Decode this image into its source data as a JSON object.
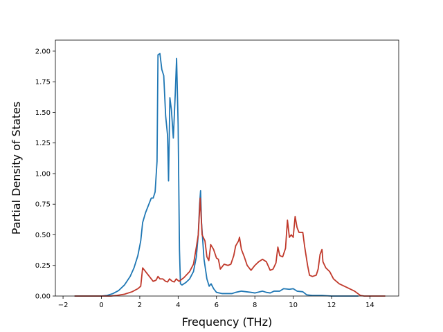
{
  "chart_data": {
    "type": "line",
    "title": "",
    "xlabel": "Frequency (THz)",
    "ylabel": "Partial Density of States",
    "xlim": [
      -2.4,
      15.5
    ],
    "ylim": [
      0.0,
      2.09
    ],
    "xticks": [
      -2,
      0,
      2,
      4,
      6,
      8,
      10,
      12,
      14
    ],
    "xtick_labels": [
      "−2",
      "0",
      "2",
      "4",
      "6",
      "8",
      "10",
      "12",
      "14"
    ],
    "yticks": [
      0.0,
      0.25,
      0.5,
      0.75,
      1.0,
      1.25,
      1.5,
      1.75,
      2.0
    ],
    "ytick_labels": [
      "0.00",
      "0.25",
      "0.50",
      "0.75",
      "1.00",
      "1.25",
      "1.50",
      "1.75",
      "2.00"
    ],
    "grid": false,
    "legend": "none",
    "series": [
      {
        "color": "#1f77b4",
        "points": [
          [
            -1.4,
            0.0
          ],
          [
            0.0,
            0.0
          ],
          [
            0.3,
            0.005
          ],
          [
            0.6,
            0.02
          ],
          [
            0.9,
            0.045
          ],
          [
            1.2,
            0.09
          ],
          [
            1.5,
            0.16
          ],
          [
            1.7,
            0.23
          ],
          [
            1.9,
            0.33
          ],
          [
            2.05,
            0.45
          ],
          [
            2.15,
            0.6
          ],
          [
            2.3,
            0.68
          ],
          [
            2.5,
            0.76
          ],
          [
            2.6,
            0.8
          ],
          [
            2.7,
            0.8
          ],
          [
            2.8,
            0.85
          ],
          [
            2.9,
            1.1
          ],
          [
            2.95,
            1.97
          ],
          [
            3.05,
            1.98
          ],
          [
            3.15,
            1.85
          ],
          [
            3.25,
            1.8
          ],
          [
            3.35,
            1.47
          ],
          [
            3.45,
            1.31
          ],
          [
            3.5,
            0.94
          ],
          [
            3.57,
            1.62
          ],
          [
            3.65,
            1.52
          ],
          [
            3.75,
            1.29
          ],
          [
            3.85,
            1.65
          ],
          [
            3.92,
            1.94
          ],
          [
            4.0,
            1.4
          ],
          [
            4.07,
            0.38
          ],
          [
            4.12,
            0.1
          ],
          [
            4.2,
            0.09
          ],
          [
            4.4,
            0.11
          ],
          [
            4.6,
            0.14
          ],
          [
            4.8,
            0.2
          ],
          [
            4.95,
            0.32
          ],
          [
            5.05,
            0.5
          ],
          [
            5.12,
            0.75
          ],
          [
            5.17,
            0.86
          ],
          [
            5.22,
            0.6
          ],
          [
            5.35,
            0.3
          ],
          [
            5.5,
            0.14
          ],
          [
            5.62,
            0.08
          ],
          [
            5.72,
            0.1
          ],
          [
            5.85,
            0.06
          ],
          [
            6.0,
            0.03
          ],
          [
            6.3,
            0.02
          ],
          [
            6.8,
            0.02
          ],
          [
            7.0,
            0.03
          ],
          [
            7.3,
            0.04
          ],
          [
            7.8,
            0.03
          ],
          [
            8.0,
            0.025
          ],
          [
            8.4,
            0.04
          ],
          [
            8.6,
            0.03
          ],
          [
            8.8,
            0.025
          ],
          [
            9.0,
            0.04
          ],
          [
            9.3,
            0.04
          ],
          [
            9.5,
            0.06
          ],
          [
            9.8,
            0.055
          ],
          [
            10.0,
            0.06
          ],
          [
            10.2,
            0.04
          ],
          [
            10.5,
            0.035
          ],
          [
            10.7,
            0.01
          ],
          [
            11.0,
            0.005
          ],
          [
            11.5,
            0.005
          ],
          [
            12.0,
            0.0
          ],
          [
            13.4,
            0.0
          ]
        ]
      },
      {
        "color": "#c0392b",
        "points": [
          [
            -1.4,
            0.0
          ],
          [
            0.5,
            0.0
          ],
          [
            0.8,
            0.005
          ],
          [
            1.2,
            0.015
          ],
          [
            1.6,
            0.035
          ],
          [
            1.9,
            0.06
          ],
          [
            2.05,
            0.08
          ],
          [
            2.15,
            0.23
          ],
          [
            2.3,
            0.2
          ],
          [
            2.5,
            0.16
          ],
          [
            2.7,
            0.12
          ],
          [
            2.85,
            0.13
          ],
          [
            2.95,
            0.16
          ],
          [
            3.05,
            0.14
          ],
          [
            3.2,
            0.14
          ],
          [
            3.35,
            0.12
          ],
          [
            3.45,
            0.115
          ],
          [
            3.55,
            0.14
          ],
          [
            3.7,
            0.12
          ],
          [
            3.8,
            0.115
          ],
          [
            3.9,
            0.14
          ],
          [
            4.05,
            0.12
          ],
          [
            4.3,
            0.15
          ],
          [
            4.6,
            0.2
          ],
          [
            4.8,
            0.26
          ],
          [
            4.95,
            0.4
          ],
          [
            5.05,
            0.5
          ],
          [
            5.15,
            0.8
          ],
          [
            5.25,
            0.5
          ],
          [
            5.4,
            0.45
          ],
          [
            5.5,
            0.32
          ],
          [
            5.6,
            0.29
          ],
          [
            5.7,
            0.42
          ],
          [
            5.85,
            0.38
          ],
          [
            6.0,
            0.31
          ],
          [
            6.1,
            0.3
          ],
          [
            6.2,
            0.22
          ],
          [
            6.4,
            0.26
          ],
          [
            6.6,
            0.25
          ],
          [
            6.75,
            0.26
          ],
          [
            6.9,
            0.33
          ],
          [
            7.0,
            0.41
          ],
          [
            7.15,
            0.45
          ],
          [
            7.2,
            0.48
          ],
          [
            7.3,
            0.38
          ],
          [
            7.45,
            0.32
          ],
          [
            7.6,
            0.25
          ],
          [
            7.8,
            0.21
          ],
          [
            8.0,
            0.25
          ],
          [
            8.2,
            0.28
          ],
          [
            8.4,
            0.3
          ],
          [
            8.6,
            0.28
          ],
          [
            8.8,
            0.21
          ],
          [
            8.95,
            0.22
          ],
          [
            9.1,
            0.27
          ],
          [
            9.2,
            0.4
          ],
          [
            9.3,
            0.33
          ],
          [
            9.45,
            0.32
          ],
          [
            9.6,
            0.39
          ],
          [
            9.7,
            0.62
          ],
          [
            9.8,
            0.48
          ],
          [
            9.9,
            0.5
          ],
          [
            10.0,
            0.48
          ],
          [
            10.1,
            0.65
          ],
          [
            10.2,
            0.56
          ],
          [
            10.3,
            0.52
          ],
          [
            10.5,
            0.52
          ],
          [
            10.6,
            0.4
          ],
          [
            10.75,
            0.25
          ],
          [
            10.85,
            0.17
          ],
          [
            11.0,
            0.16
          ],
          [
            11.2,
            0.17
          ],
          [
            11.3,
            0.22
          ],
          [
            11.4,
            0.34
          ],
          [
            11.5,
            0.38
          ],
          [
            11.55,
            0.28
          ],
          [
            11.7,
            0.23
          ],
          [
            11.9,
            0.2
          ],
          [
            12.1,
            0.14
          ],
          [
            12.4,
            0.1
          ],
          [
            12.8,
            0.07
          ],
          [
            13.2,
            0.04
          ],
          [
            13.5,
            0.005
          ],
          [
            13.7,
            0.0
          ],
          [
            14.8,
            0.0
          ]
        ]
      }
    ]
  }
}
